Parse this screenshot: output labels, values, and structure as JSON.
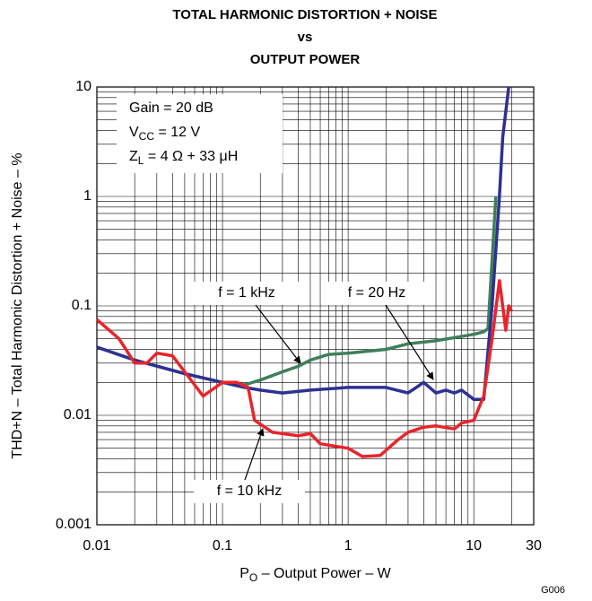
{
  "chart_data": {
    "type": "line",
    "title": [
      "TOTAL HARMONIC DISTORTION + NOISE",
      "vs",
      "OUTPUT POWER"
    ],
    "x_label": {
      "main": "P",
      "sub": "O",
      "rest": " – Output Power – W"
    },
    "y_label": "THD+N – Total Harmonic Distortion + Noise – %",
    "figure_code": "G006",
    "annotations": [
      {
        "main": "Gain = 20 dB"
      },
      {
        "main": "V",
        "sub": "CC",
        "rest": " = 12 V"
      },
      {
        "main": "Z",
        "sub": "L",
        "rest": " = 4 Ω + 33 μH"
      }
    ],
    "x_log": true,
    "y_log": true,
    "grid": true,
    "minor_grid": true,
    "xlim": [
      0.01,
      30
    ],
    "ylim": [
      0.001,
      10
    ],
    "xticks": [
      0.01,
      0.1,
      1,
      10,
      30
    ],
    "yticks": [
      0.001,
      0.01,
      0.1,
      1,
      10
    ],
    "series": [
      {
        "name": "f = 1 kHz",
        "color": "#3f7f5a",
        "x": [
          0.01,
          0.02,
          0.05,
          0.1,
          0.15,
          0.2,
          0.3,
          0.4,
          0.5,
          0.7,
          1,
          2,
          3,
          5,
          10,
          12,
          13,
          15
        ],
        "values": [
          0.042,
          0.032,
          0.024,
          0.02,
          0.019,
          0.021,
          0.025,
          0.028,
          0.032,
          0.036,
          0.037,
          0.04,
          0.045,
          0.048,
          0.055,
          0.058,
          0.062,
          1
        ]
      },
      {
        "name": "f = 20 Hz",
        "color": "#2e3192",
        "x": [
          0.01,
          0.02,
          0.05,
          0.1,
          0.15,
          0.2,
          0.3,
          0.5,
          1,
          2,
          3,
          4,
          5,
          6,
          7,
          8,
          10,
          12,
          14,
          16,
          17,
          19
        ],
        "values": [
          0.042,
          0.032,
          0.024,
          0.02,
          0.018,
          0.017,
          0.016,
          0.017,
          0.018,
          0.018,
          0.016,
          0.02,
          0.016,
          0.017,
          0.016,
          0.017,
          0.014,
          0.014,
          0.1,
          1,
          3.5,
          10
        ]
      },
      {
        "name": "f = 10 kHz",
        "color": "#e8242a",
        "x": [
          0.01,
          0.015,
          0.02,
          0.025,
          0.03,
          0.04,
          0.05,
          0.07,
          0.1,
          0.13,
          0.16,
          0.18,
          0.25,
          0.4,
          0.5,
          0.6,
          0.8,
          1,
          1.3,
          1.8,
          2.5,
          3,
          4,
          5,
          7,
          8,
          10,
          12,
          14,
          16,
          18,
          19,
          20
        ],
        "values": [
          0.075,
          0.05,
          0.03,
          0.03,
          0.037,
          0.035,
          0.025,
          0.015,
          0.02,
          0.02,
          0.018,
          0.009,
          0.007,
          0.0065,
          0.0068,
          0.0055,
          0.0052,
          0.005,
          0.0042,
          0.0043,
          0.006,
          0.007,
          0.0078,
          0.008,
          0.0075,
          0.0085,
          0.009,
          0.015,
          0.05,
          0.17,
          0.06,
          0.1,
          0.09
        ]
      }
    ]
  }
}
